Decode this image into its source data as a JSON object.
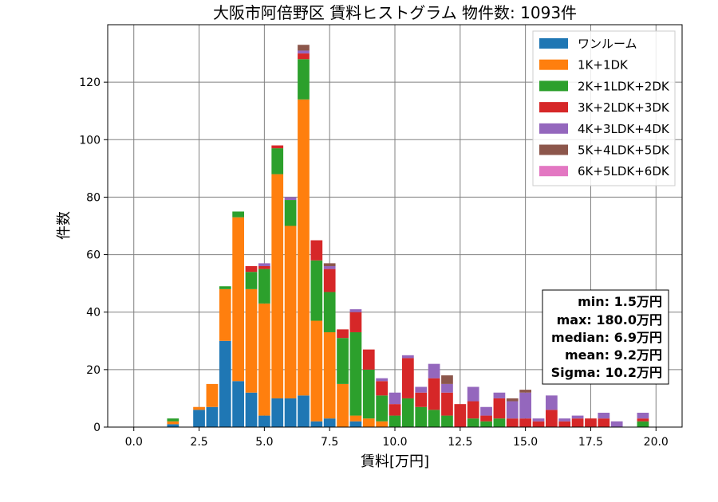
{
  "chart_data": {
    "type": "bar",
    "stacked": true,
    "title": "大阪市阿倍野区 賃料ヒストグラム 物件数: 1093件",
    "xlabel": "賃料[万円]",
    "ylabel": "件数",
    "xlim": [
      -1,
      21
    ],
    "ylim": [
      0,
      140
    ],
    "bin_width": 0.5,
    "x_ticks": [
      0,
      2.5,
      5,
      7.5,
      10,
      12.5,
      15,
      17.5,
      20
    ],
    "x_tick_labels": [
      "0.0",
      "2.5",
      "5.0",
      "7.5",
      "10.0",
      "12.5",
      "15.0",
      "17.5",
      "20.0"
    ],
    "y_ticks": [
      0,
      20,
      40,
      60,
      80,
      100,
      120
    ],
    "y_tick_labels": [
      "0",
      "20",
      "40",
      "60",
      "80",
      "100",
      "120"
    ],
    "grid": true,
    "legend_position": "top-right",
    "x": [
      1.5,
      2.0,
      2.5,
      3.0,
      3.5,
      4.0,
      4.5,
      5.0,
      5.5,
      6.0,
      6.5,
      7.0,
      7.5,
      8.0,
      8.5,
      9.0,
      9.5,
      10.0,
      10.5,
      11.0,
      11.5,
      12.0,
      12.5,
      13.0,
      13.5,
      14.0,
      14.5,
      15.0,
      15.5,
      16.0,
      16.5,
      17.0,
      17.5,
      18.0,
      18.5,
      19.0,
      19.5
    ],
    "series": [
      {
        "name": "ワンルーム",
        "color": "#1f77b4",
        "values": [
          1,
          0,
          6,
          7,
          30,
          16,
          12,
          4,
          10,
          10,
          11,
          2,
          3,
          0,
          2,
          0,
          0,
          0,
          0,
          0,
          0,
          0,
          0,
          0,
          0,
          0,
          0,
          0,
          0,
          0,
          0,
          0,
          0,
          0,
          0,
          0,
          0
        ]
      },
      {
        "name": "1K+1DK",
        "color": "#ff7f0e",
        "values": [
          1,
          0,
          1,
          8,
          18,
          57,
          36,
          39,
          78,
          60,
          103,
          35,
          30,
          15,
          2,
          3,
          2,
          0,
          0,
          0,
          0,
          0,
          0,
          0,
          0,
          0,
          0,
          0,
          0,
          0,
          0,
          0,
          0,
          0,
          0,
          0,
          0
        ]
      },
      {
        "name": "2K+1LDK+2DK",
        "color": "#2ca02c",
        "values": [
          1,
          0,
          0,
          0,
          1,
          2,
          6,
          12,
          9,
          9,
          14,
          21,
          14,
          16,
          29,
          17,
          9,
          4,
          10,
          7,
          6,
          4,
          0,
          3,
          2,
          3,
          0,
          0,
          0,
          0,
          0,
          0,
          0,
          0,
          0,
          0,
          2
        ]
      },
      {
        "name": "3K+2LDK+3DK",
        "color": "#d62728",
        "values": [
          0,
          0,
          0,
          0,
          0,
          0,
          2,
          1,
          1,
          0,
          2,
          7,
          8,
          3,
          7,
          7,
          5,
          4,
          14,
          5,
          11,
          8,
          8,
          6,
          2,
          7,
          3,
          3,
          2,
          6,
          2,
          3,
          3,
          3,
          0,
          0,
          1
        ]
      },
      {
        "name": "4K+3LDK+4DK",
        "color": "#9467bd",
        "values": [
          0,
          0,
          0,
          0,
          0,
          0,
          0,
          1,
          0,
          1,
          1,
          0,
          1,
          0,
          1,
          0,
          1,
          4,
          1,
          2,
          5,
          3,
          0,
          5,
          3,
          2,
          6,
          9,
          1,
          5,
          1,
          1,
          0,
          2,
          2,
          0,
          2
        ]
      },
      {
        "name": "5K+4LDK+5DK",
        "color": "#8c564b",
        "values": [
          0,
          0,
          0,
          0,
          0,
          0,
          0,
          0,
          0,
          0,
          2,
          0,
          1,
          0,
          0,
          0,
          0,
          0,
          0,
          0,
          0,
          3,
          0,
          0,
          0,
          0,
          1,
          1,
          0,
          0,
          0,
          0,
          0,
          0,
          0,
          0,
          0
        ]
      },
      {
        "name": "6K+5LDK+6DK",
        "color": "#e377c2",
        "values": [
          0,
          0,
          0,
          0,
          0,
          0,
          0,
          0,
          0,
          0,
          0,
          0,
          0,
          0,
          0,
          0,
          0,
          0,
          0,
          0,
          0,
          0,
          0,
          0,
          0,
          0,
          0,
          0,
          0,
          0,
          0,
          0,
          0,
          0,
          0,
          0,
          0
        ]
      }
    ],
    "stats_box": {
      "min": "min: 1.5万円",
      "max": "max: 180.0万円",
      "median": "median: 6.9万円",
      "mean": "mean: 9.2万円",
      "sigma": "Sigma: 10.2万円"
    }
  }
}
